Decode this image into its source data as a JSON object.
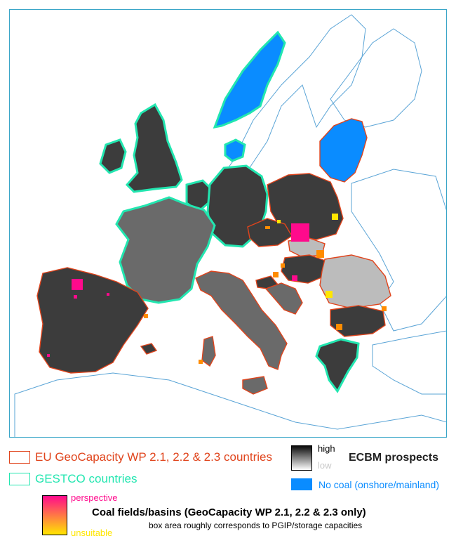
{
  "legend": {
    "eu_countries": "EU GeoCapacity WP 2.1, 2.2 & 2.3 countries",
    "gestco_countries": "GESTCO countries",
    "ecbm_high": "high",
    "ecbm_low": "low",
    "ecbm_title": "ECBM prospects",
    "no_coal": "No coal (onshore/mainland)",
    "coal_perspective": "perspective",
    "coal_unsuitable": "unsuitable",
    "coal_title": "Coal fields/basins (GeoCapacity WP 2.1, 2.2 & 2.3 only)",
    "coal_note": "box area roughly corresponds to PGIP/storage capacities"
  },
  "colors": {
    "eu_border": "#e0441c",
    "gestco_border": "#22e6b0",
    "no_coal": "#0a8cff",
    "perspective": "#ff0a8c",
    "unsuitable": "#ffe600",
    "coastline": "#5aa4d6"
  }
}
